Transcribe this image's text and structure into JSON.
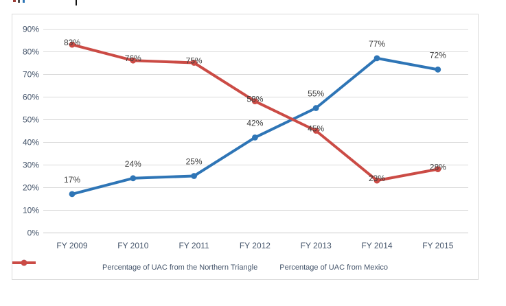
{
  "chart_data": {
    "type": "line",
    "categories": [
      "FY 2009",
      "FY 2010",
      "FY 2011",
      "FY 2012",
      "FY 2013",
      "FY 2014",
      "FY 2015"
    ],
    "series": [
      {
        "name": "Percentage of UAC from the Northern Triangle",
        "color": "#2E75B6",
        "values": [
          17,
          24,
          25,
          42,
          55,
          77,
          72
        ],
        "data_labels": [
          "17%",
          "24%",
          "25%",
          "42%",
          "55%",
          "77%",
          "72%"
        ],
        "label_position": "above"
      },
      {
        "name": "Percentage of UAC from Mexico",
        "color": "#CB4B45",
        "values": [
          83,
          76,
          75,
          58,
          45,
          23,
          28
        ],
        "data_labels": [
          "83%",
          "76%",
          "75%",
          "58%",
          "45%",
          "23%",
          "28%"
        ],
        "label_position": "center"
      }
    ],
    "title": "",
    "xlabel": "",
    "ylabel": "",
    "ylim": [
      0,
      90
    ],
    "ytick_step": 10,
    "ytick_labels": [
      "0%",
      "10%",
      "20%",
      "30%",
      "40%",
      "50%",
      "60%",
      "70%",
      "80%",
      "90%"
    ],
    "grid": true,
    "legend_position": "bottom",
    "colors": {
      "gridline": "#D9D9D9",
      "zero_line": "#C9C9C9",
      "axis_label": "#44546A",
      "data_label": "#3B3B3B",
      "legend_text": "#44546A",
      "frame_border": "#D9D9D9"
    }
  }
}
